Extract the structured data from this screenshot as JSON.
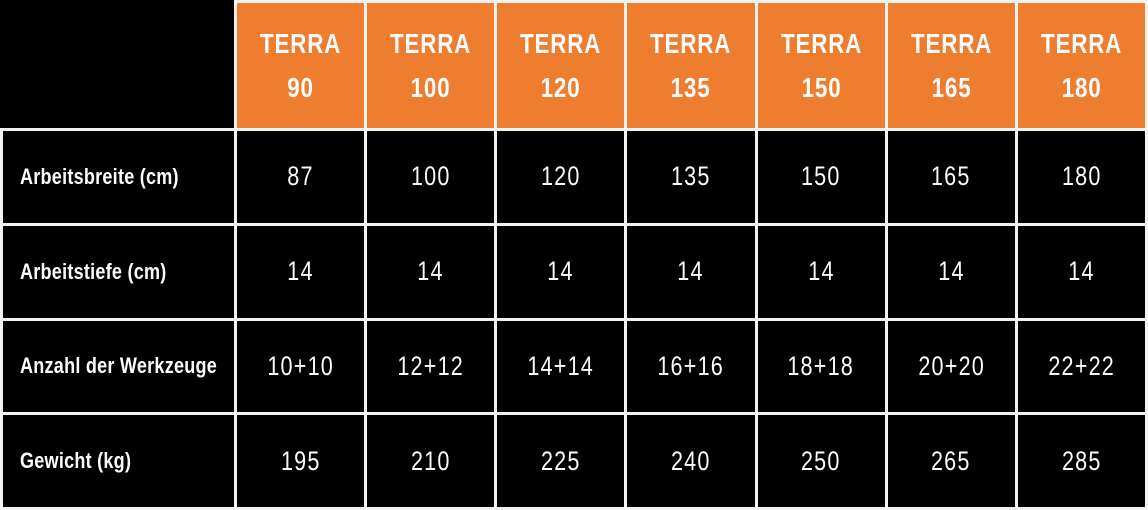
{
  "chart_data": {
    "type": "table",
    "title": "",
    "corner_cell": "",
    "columns": [
      {
        "line1": "TERRA",
        "line2": "90"
      },
      {
        "line1": "TERRA",
        "line2": "100"
      },
      {
        "line1": "TERRA",
        "line2": "120"
      },
      {
        "line1": "TERRA",
        "line2": "135"
      },
      {
        "line1": "TERRA",
        "line2": "150"
      },
      {
        "line1": "TERRA",
        "line2": "165"
      },
      {
        "line1": "TERRA",
        "line2": "180"
      }
    ],
    "rows": [
      {
        "label": "Arbeitsbreite (cm)",
        "values": [
          "87",
          "100",
          "120",
          "135",
          "150",
          "165",
          "180"
        ]
      },
      {
        "label": "Arbeitstiefe (cm)",
        "values": [
          "14",
          "14",
          "14",
          "14",
          "14",
          "14",
          "14"
        ]
      },
      {
        "label": "Anzahl der Werkzeuge",
        "values": [
          "10+10",
          "12+12",
          "14+14",
          "16+16",
          "18+18",
          "20+20",
          "22+22"
        ]
      },
      {
        "label": "Gewicht (kg)",
        "values": [
          "195",
          "210",
          "225",
          "240",
          "250",
          "265",
          "285"
        ]
      }
    ],
    "layout": {
      "grid": true,
      "header_position": "top",
      "label_column_position": "left"
    },
    "colors": {
      "header_bg": "#EF7D30",
      "cell_bg": "#000000",
      "text": "#FCFCFC",
      "border": "#F2F2F2"
    }
  }
}
